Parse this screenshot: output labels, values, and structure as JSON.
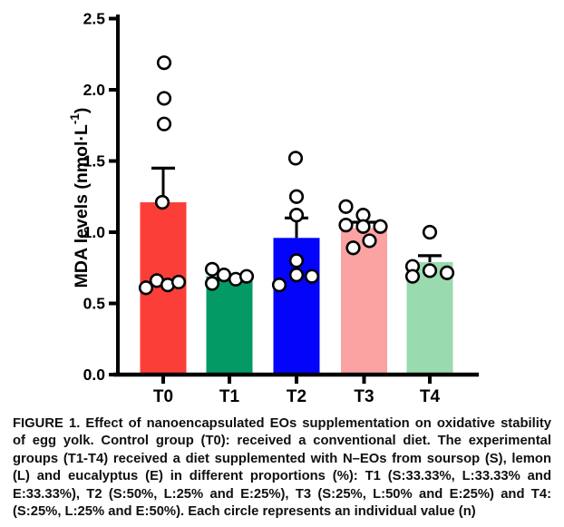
{
  "figure": {
    "caption_lines": [
      "FIGURE 1. Effect of nanoencapsulated EOs supplementation on oxidative stability",
      "of egg yolk. Control group (T0): received a conventional diet. The experimental",
      "groups (T1-T4) received a diet supplemented with N–EOs from soursop (S), lemon",
      "(L) and eucalyptus (E) in different proportions (%): T1 (S:33.33%, L:33.33% and",
      "E:33.33%), T2 (S:50%, L:25% and E:25%), T3 (S:25%, L:50% and E:25%) and T4:",
      "(S:25%, L:25% and E:50%). Each circle represents an individual value (n)"
    ]
  },
  "chart_data": {
    "type": "bar",
    "title": "",
    "xlabel": "",
    "ylabel": "MDA levels (nmol·L⁻¹)",
    "ylabel_parts": {
      "main": "MDA levels (nmol·L",
      "sup": "-1",
      "close": ")"
    },
    "ylim": [
      0.0,
      2.5
    ],
    "yticks": [
      0.0,
      0.5,
      1.0,
      1.5,
      2.0,
      2.5
    ],
    "ytick_labels": [
      "0.0",
      "0.5",
      "1.0",
      "1.5",
      "2.0",
      "2.5"
    ],
    "grid": false,
    "legend_position": "none",
    "point_marker": "open-circle",
    "categories": [
      "T0",
      "T1",
      "T2",
      "T3",
      "T4"
    ],
    "series": [
      {
        "name": "T0",
        "color": "#FC3E38",
        "mean": 1.21,
        "sem_top": 1.45,
        "points": [
          [
            1,
            2.19
          ],
          [
            1,
            1.94
          ],
          [
            1,
            1.76
          ],
          [
            -1,
            1.21
          ],
          [
            -19,
            0.61
          ],
          [
            -7,
            0.66
          ],
          [
            5,
            0.63
          ],
          [
            17,
            0.65
          ]
        ]
      },
      {
        "name": "T1",
        "color": "#049A66",
        "mean": 0.69,
        "sem_top": null,
        "points": [
          [
            -19,
            0.74
          ],
          [
            -19,
            0.64
          ],
          [
            -6,
            0.7
          ],
          [
            7,
            0.67
          ],
          [
            19,
            0.69
          ]
        ]
      },
      {
        "name": "T2",
        "color": "#0404FA",
        "mean": 0.96,
        "sem_top": 1.1,
        "points": [
          [
            -1,
            1.52
          ],
          [
            0,
            1.25
          ],
          [
            0,
            1.12
          ],
          [
            0,
            0.8
          ],
          [
            0,
            0.7
          ],
          [
            17,
            0.69
          ],
          [
            -19,
            0.63
          ]
        ]
      },
      {
        "name": "T3",
        "color": "#FBA2A2",
        "mean": 1.03,
        "sem_top": 1.07,
        "points": [
          [
            -20,
            1.18
          ],
          [
            -1,
            1.12
          ],
          [
            -20,
            1.05
          ],
          [
            -1,
            1.04
          ],
          [
            18,
            1.04
          ],
          [
            6,
            0.94
          ],
          [
            -12,
            0.89
          ]
        ]
      },
      {
        "name": "T4",
        "color": "#99DAAF",
        "mean": 0.79,
        "sem_top": 0.835,
        "points": [
          [
            0,
            1.0
          ],
          [
            -19,
            0.76
          ],
          [
            0,
            0.73
          ],
          [
            19,
            0.715
          ],
          [
            -19,
            0.69
          ]
        ]
      }
    ]
  }
}
